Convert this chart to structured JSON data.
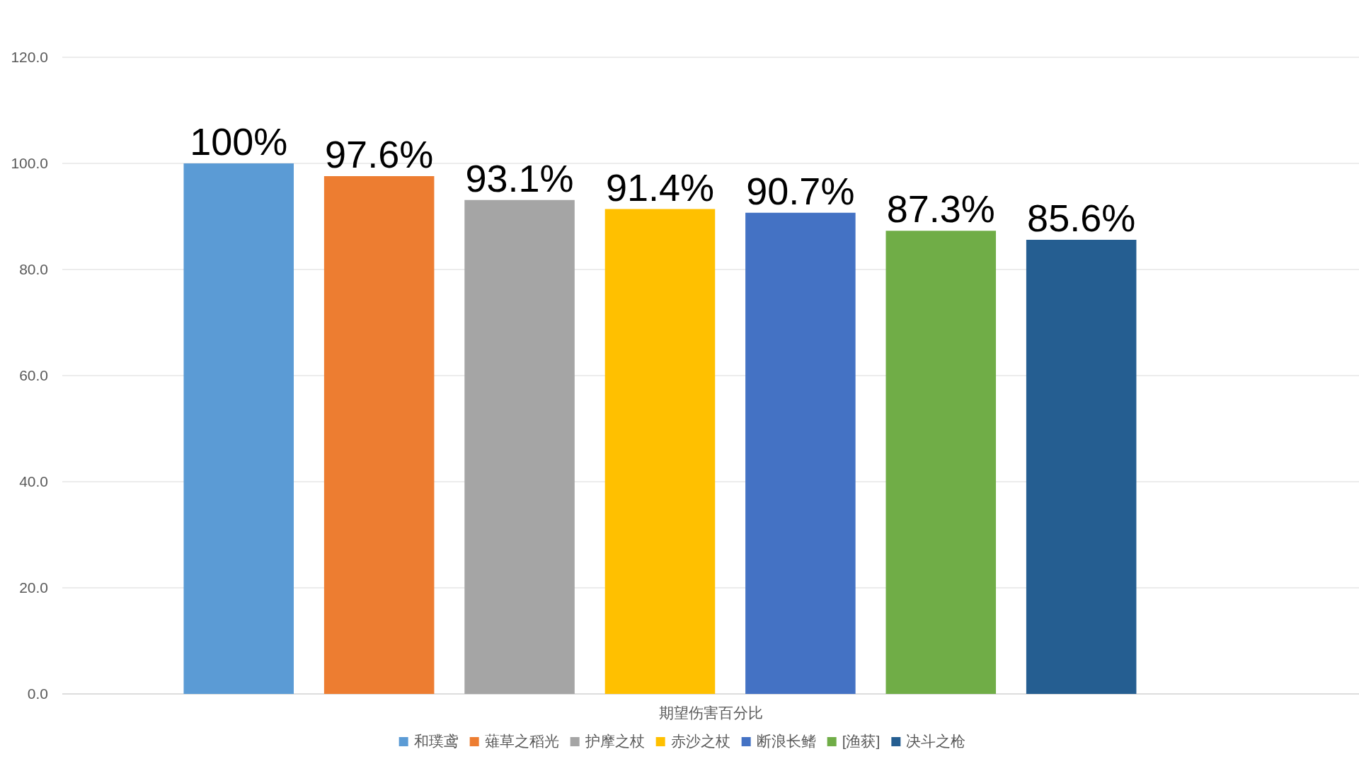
{
  "chart_data": {
    "type": "bar",
    "categories": [
      "期望伤害百分比"
    ],
    "series": [
      {
        "name": "和璞鸢",
        "color": "#5b9bd5",
        "values": [
          100.0
        ],
        "value_labels": [
          "100%"
        ]
      },
      {
        "name": "薙草之稻光",
        "color": "#ed7d31",
        "values": [
          97.6
        ],
        "value_labels": [
          "97.6%"
        ]
      },
      {
        "name": "护摩之杖",
        "color": "#a5a5a5",
        "values": [
          93.1
        ],
        "value_labels": [
          "93.1%"
        ]
      },
      {
        "name": "赤沙之杖",
        "color": "#ffc000",
        "values": [
          91.4
        ],
        "value_labels": [
          "91.4%"
        ]
      },
      {
        "name": "断浪长鳍",
        "color": "#4472c4",
        "values": [
          90.7
        ],
        "value_labels": [
          "90.7%"
        ]
      },
      {
        "name": "[渔获]",
        "color": "#70ad47",
        "values": [
          87.3
        ],
        "value_labels": [
          "87.3%"
        ]
      },
      {
        "name": "决斗之枪",
        "color": "#255e91",
        "values": [
          85.6
        ],
        "value_labels": [
          "85.6%"
        ]
      }
    ],
    "ylim": [
      0,
      120
    ],
    "yticks": [
      {
        "value": 0,
        "label": "0.0"
      },
      {
        "value": 20,
        "label": "20.0"
      },
      {
        "value": 40,
        "label": "40.0"
      },
      {
        "value": 60,
        "label": "60.0"
      },
      {
        "value": 80,
        "label": "80.0"
      },
      {
        "value": 100,
        "label": "100.0"
      },
      {
        "value": 120,
        "label": "120.0"
      }
    ],
    "grid": "y",
    "legend": "bottom"
  }
}
